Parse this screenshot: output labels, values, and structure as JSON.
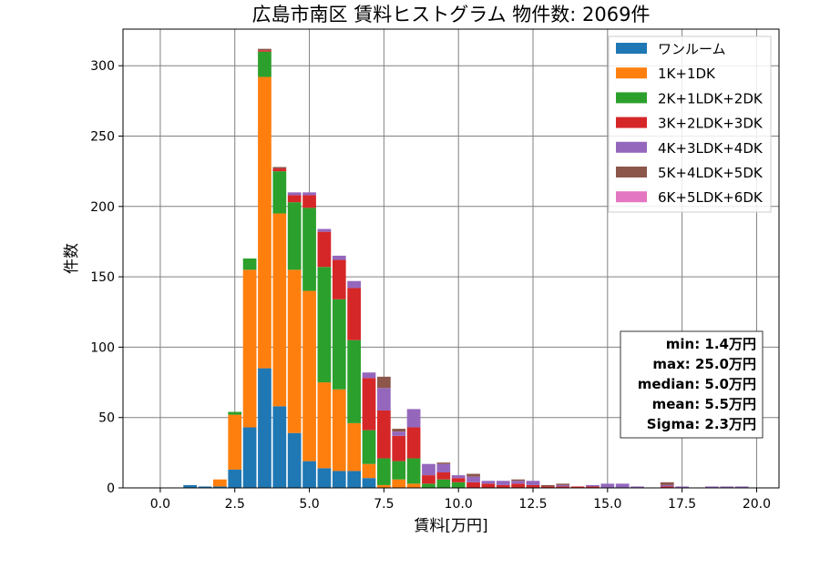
{
  "chart_data": {
    "type": "bar",
    "stacked": true,
    "title": "広島市南区 賃料ヒストグラム 物件数: 2069件",
    "xlabel": "賃料[万円]",
    "ylabel": "件数",
    "xlim": [
      -1.25,
      20.75
    ],
    "ylim": [
      0,
      326
    ],
    "bin_width": 0.5,
    "grid": true,
    "legend_position": "top-right",
    "x_ticks": [
      0.0,
      2.5,
      5.0,
      7.5,
      10.0,
      12.5,
      15.0,
      17.5,
      20.0
    ],
    "x_tick_labels": [
      "0.0",
      "2.5",
      "5.0",
      "7.5",
      "10.0",
      "12.5",
      "15.0",
      "17.5",
      "20.0"
    ],
    "y_ticks": [
      0,
      50,
      100,
      150,
      200,
      250,
      300
    ],
    "y_tick_labels": [
      "0",
      "50",
      "100",
      "150",
      "200",
      "250",
      "300"
    ],
    "bins": [
      1.0,
      1.5,
      2.0,
      2.5,
      3.0,
      3.5,
      4.0,
      4.5,
      5.0,
      5.5,
      6.0,
      6.5,
      7.0,
      7.5,
      8.0,
      8.5,
      9.0,
      9.5,
      10.0,
      10.5,
      11.0,
      11.5,
      12.0,
      12.5,
      13.0,
      13.5,
      14.0,
      14.5,
      15.0,
      15.5,
      16.0,
      16.5,
      17.0,
      17.5,
      18.0,
      18.5,
      19.0,
      19.5
    ],
    "series": [
      {
        "name": "ワンルーム",
        "color": "#1f77b4",
        "values": [
          2,
          1,
          1,
          13,
          43,
          85,
          58,
          39,
          19,
          14,
          12,
          12,
          7,
          0,
          0,
          0,
          0,
          0,
          0,
          0,
          0,
          0,
          0,
          0,
          0,
          0,
          0,
          0,
          0,
          0,
          0,
          0,
          0,
          0,
          0,
          0,
          0,
          0
        ]
      },
      {
        "name": "1K+1DK",
        "color": "#ff7f0e",
        "values": [
          0,
          0,
          5,
          39,
          112,
          207,
          137,
          116,
          121,
          61,
          58,
          34,
          10,
          2,
          6,
          3,
          0,
          0,
          0,
          0,
          0,
          0,
          0,
          0,
          0,
          0,
          0,
          0,
          0,
          0,
          0,
          0,
          0,
          0,
          0,
          0,
          0,
          0
        ]
      },
      {
        "name": "2K+1LDK+2DK",
        "color": "#2ca02c",
        "values": [
          0,
          0,
          0,
          2,
          8,
          18,
          30,
          48,
          59,
          82,
          64,
          59,
          24,
          19,
          13,
          18,
          3,
          6,
          4,
          0,
          0,
          0,
          0,
          0,
          0,
          0,
          0,
          0,
          0,
          0,
          0,
          0,
          0,
          0,
          0,
          0,
          0,
          0
        ]
      },
      {
        "name": "3K+2LDK+3DK",
        "color": "#d62728",
        "values": [
          0,
          0,
          0,
          0,
          0,
          1,
          2,
          5,
          9,
          25,
          28,
          37,
          37,
          34,
          18,
          22,
          6,
          5,
          3,
          4,
          3,
          2,
          3,
          2,
          1,
          1,
          1,
          1,
          0,
          0,
          0,
          0,
          1,
          0,
          0,
          0,
          0,
          0
        ]
      },
      {
        "name": "4K+3LDK+4DK",
        "color": "#9467bd",
        "values": [
          0,
          0,
          0,
          0,
          0,
          0,
          0,
          2,
          2,
          2,
          3,
          5,
          4,
          16,
          3,
          13,
          8,
          6,
          2,
          4,
          2,
          3,
          2,
          3,
          0,
          1,
          0,
          1,
          3,
          3,
          1,
          0,
          1,
          1,
          0,
          1,
          1,
          1
        ]
      },
      {
        "name": "5K+4LDK+5DK",
        "color": "#8c564b",
        "values": [
          0,
          0,
          0,
          0,
          0,
          1,
          1,
          0,
          0,
          0,
          0,
          0,
          0,
          8,
          2,
          0,
          0,
          1,
          0,
          2,
          0,
          0,
          1,
          0,
          1,
          1,
          0,
          0,
          0,
          0,
          0,
          0,
          2,
          0,
          0,
          0,
          0,
          0
        ]
      },
      {
        "name": "6K+5LDK+6DK",
        "color": "#e377c2",
        "values": [
          0,
          0,
          0,
          0,
          0,
          0,
          0,
          0,
          0,
          0,
          0,
          0,
          0,
          0,
          0,
          0,
          0,
          0,
          0,
          0,
          0,
          0,
          0,
          0,
          0,
          0,
          0,
          0,
          0,
          0,
          0,
          0,
          0,
          0,
          0,
          0,
          0,
          0
        ]
      }
    ],
    "stats": {
      "min": "min: 1.4万円",
      "max": "max: 25.0万円",
      "median": "median: 5.0万円",
      "mean": "mean: 5.5万円",
      "sigma": "Sigma: 2.3万円"
    }
  }
}
